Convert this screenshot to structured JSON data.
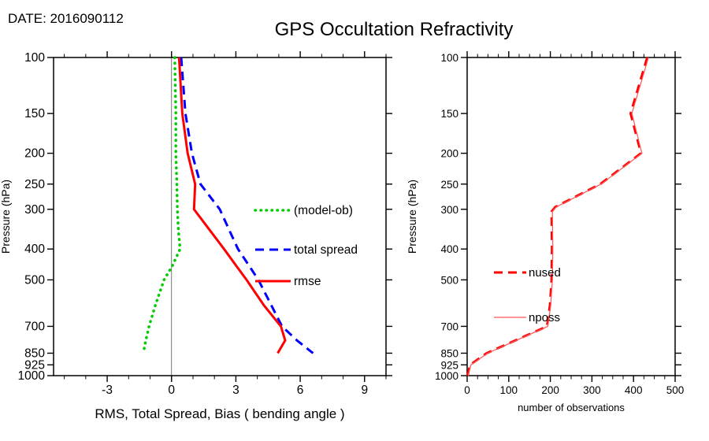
{
  "header": {
    "date": "DATE: 2016090112",
    "title": "GPS Occultation Refractivity"
  },
  "chart_data": [
    {
      "type": "line",
      "title": "",
      "xlabel": "RMS, Total Spread, Bias ( bending angle )",
      "ylabel": "Pressure (hPa)",
      "xlim": [
        -5.5,
        10
      ],
      "x_ticks": [
        -3,
        0,
        3,
        6,
        9
      ],
      "x_minor_step": 1,
      "y_scale": "log",
      "ylim": [
        100,
        1000
      ],
      "y_ticks": [
        100,
        150,
        200,
        250,
        300,
        400,
        500,
        700,
        850,
        925,
        1000
      ],
      "zero_line_x": 0,
      "grid": false,
      "legend_position": "center-right-inside",
      "series": [
        {
          "name": "(model-ob)",
          "color": "#00cc00",
          "style": "dotted",
          "width": 3.5,
          "points": [
            [
              100,
              0.15
            ],
            [
              150,
              0.2
            ],
            [
              200,
              0.2
            ],
            [
              250,
              0.25
            ],
            [
              300,
              0.27
            ],
            [
              350,
              0.32
            ],
            [
              400,
              0.4
            ],
            [
              450,
              0.05
            ],
            [
              500,
              -0.35
            ],
            [
              600,
              -0.75
            ],
            [
              700,
              -1.05
            ],
            [
              775,
              -1.2
            ],
            [
              850,
              -1.32
            ]
          ]
        },
        {
          "name": "total spread",
          "color": "#0000ff",
          "style": "dashed",
          "width": 3,
          "points": [
            [
              100,
              0.45
            ],
            [
              150,
              0.65
            ],
            [
              200,
              0.95
            ],
            [
              250,
              1.35
            ],
            [
              300,
              2.25
            ],
            [
              350,
              2.7
            ],
            [
              400,
              3.1
            ],
            [
              450,
              3.6
            ],
            [
              500,
              4.05
            ],
            [
              600,
              4.65
            ],
            [
              700,
              5.15
            ],
            [
              775,
              5.85
            ],
            [
              850,
              6.6
            ]
          ]
        },
        {
          "name": "rmse",
          "color": "#ff0000",
          "style": "solid",
          "width": 3,
          "points": [
            [
              100,
              0.35
            ],
            [
              150,
              0.5
            ],
            [
              200,
              0.75
            ],
            [
              250,
              1.1
            ],
            [
              300,
              1.05
            ],
            [
              350,
              1.8
            ],
            [
              400,
              2.45
            ],
            [
              450,
              3.0
            ],
            [
              500,
              3.5
            ],
            [
              600,
              4.3
            ],
            [
              700,
              5.1
            ],
            [
              775,
              5.3
            ],
            [
              850,
              4.95
            ]
          ]
        }
      ]
    },
    {
      "type": "line",
      "title": "",
      "xlabel": "number of observations",
      "ylabel": "Pressure (hPa)",
      "xlim": [
        0,
        500
      ],
      "x_ticks": [
        0,
        100,
        200,
        300,
        400,
        500
      ],
      "x_minor_step": 25,
      "y_scale": "log",
      "ylim": [
        100,
        1000
      ],
      "y_ticks": [
        100,
        150,
        200,
        250,
        300,
        400,
        500,
        700,
        850,
        925,
        1000
      ],
      "grid": false,
      "legend_position": "center-left-inside",
      "series": [
        {
          "name": "nused",
          "color": "#ff0000",
          "style": "dashed",
          "width": 3,
          "points": [
            [
              100,
              433
            ],
            [
              150,
              393
            ],
            [
              200,
              418
            ],
            [
              250,
              320
            ],
            [
              295,
              212
            ],
            [
              305,
              203
            ],
            [
              400,
              204
            ],
            [
              500,
              203
            ],
            [
              600,
              199
            ],
            [
              700,
              192
            ],
            [
              850,
              47
            ],
            [
              925,
              7
            ],
            [
              1000,
              1
            ]
          ]
        },
        {
          "name": "nposs",
          "color": "#ff5555",
          "style": "solid",
          "width": 1.2,
          "points": [
            [
              100,
              436
            ],
            [
              150,
              396
            ],
            [
              200,
              420
            ],
            [
              250,
              322
            ],
            [
              295,
              214
            ],
            [
              305,
              205
            ],
            [
              400,
              206
            ],
            [
              500,
              205
            ],
            [
              600,
              201
            ],
            [
              700,
              194
            ],
            [
              850,
              49
            ],
            [
              925,
              9
            ],
            [
              1000,
              2
            ]
          ]
        }
      ]
    }
  ]
}
